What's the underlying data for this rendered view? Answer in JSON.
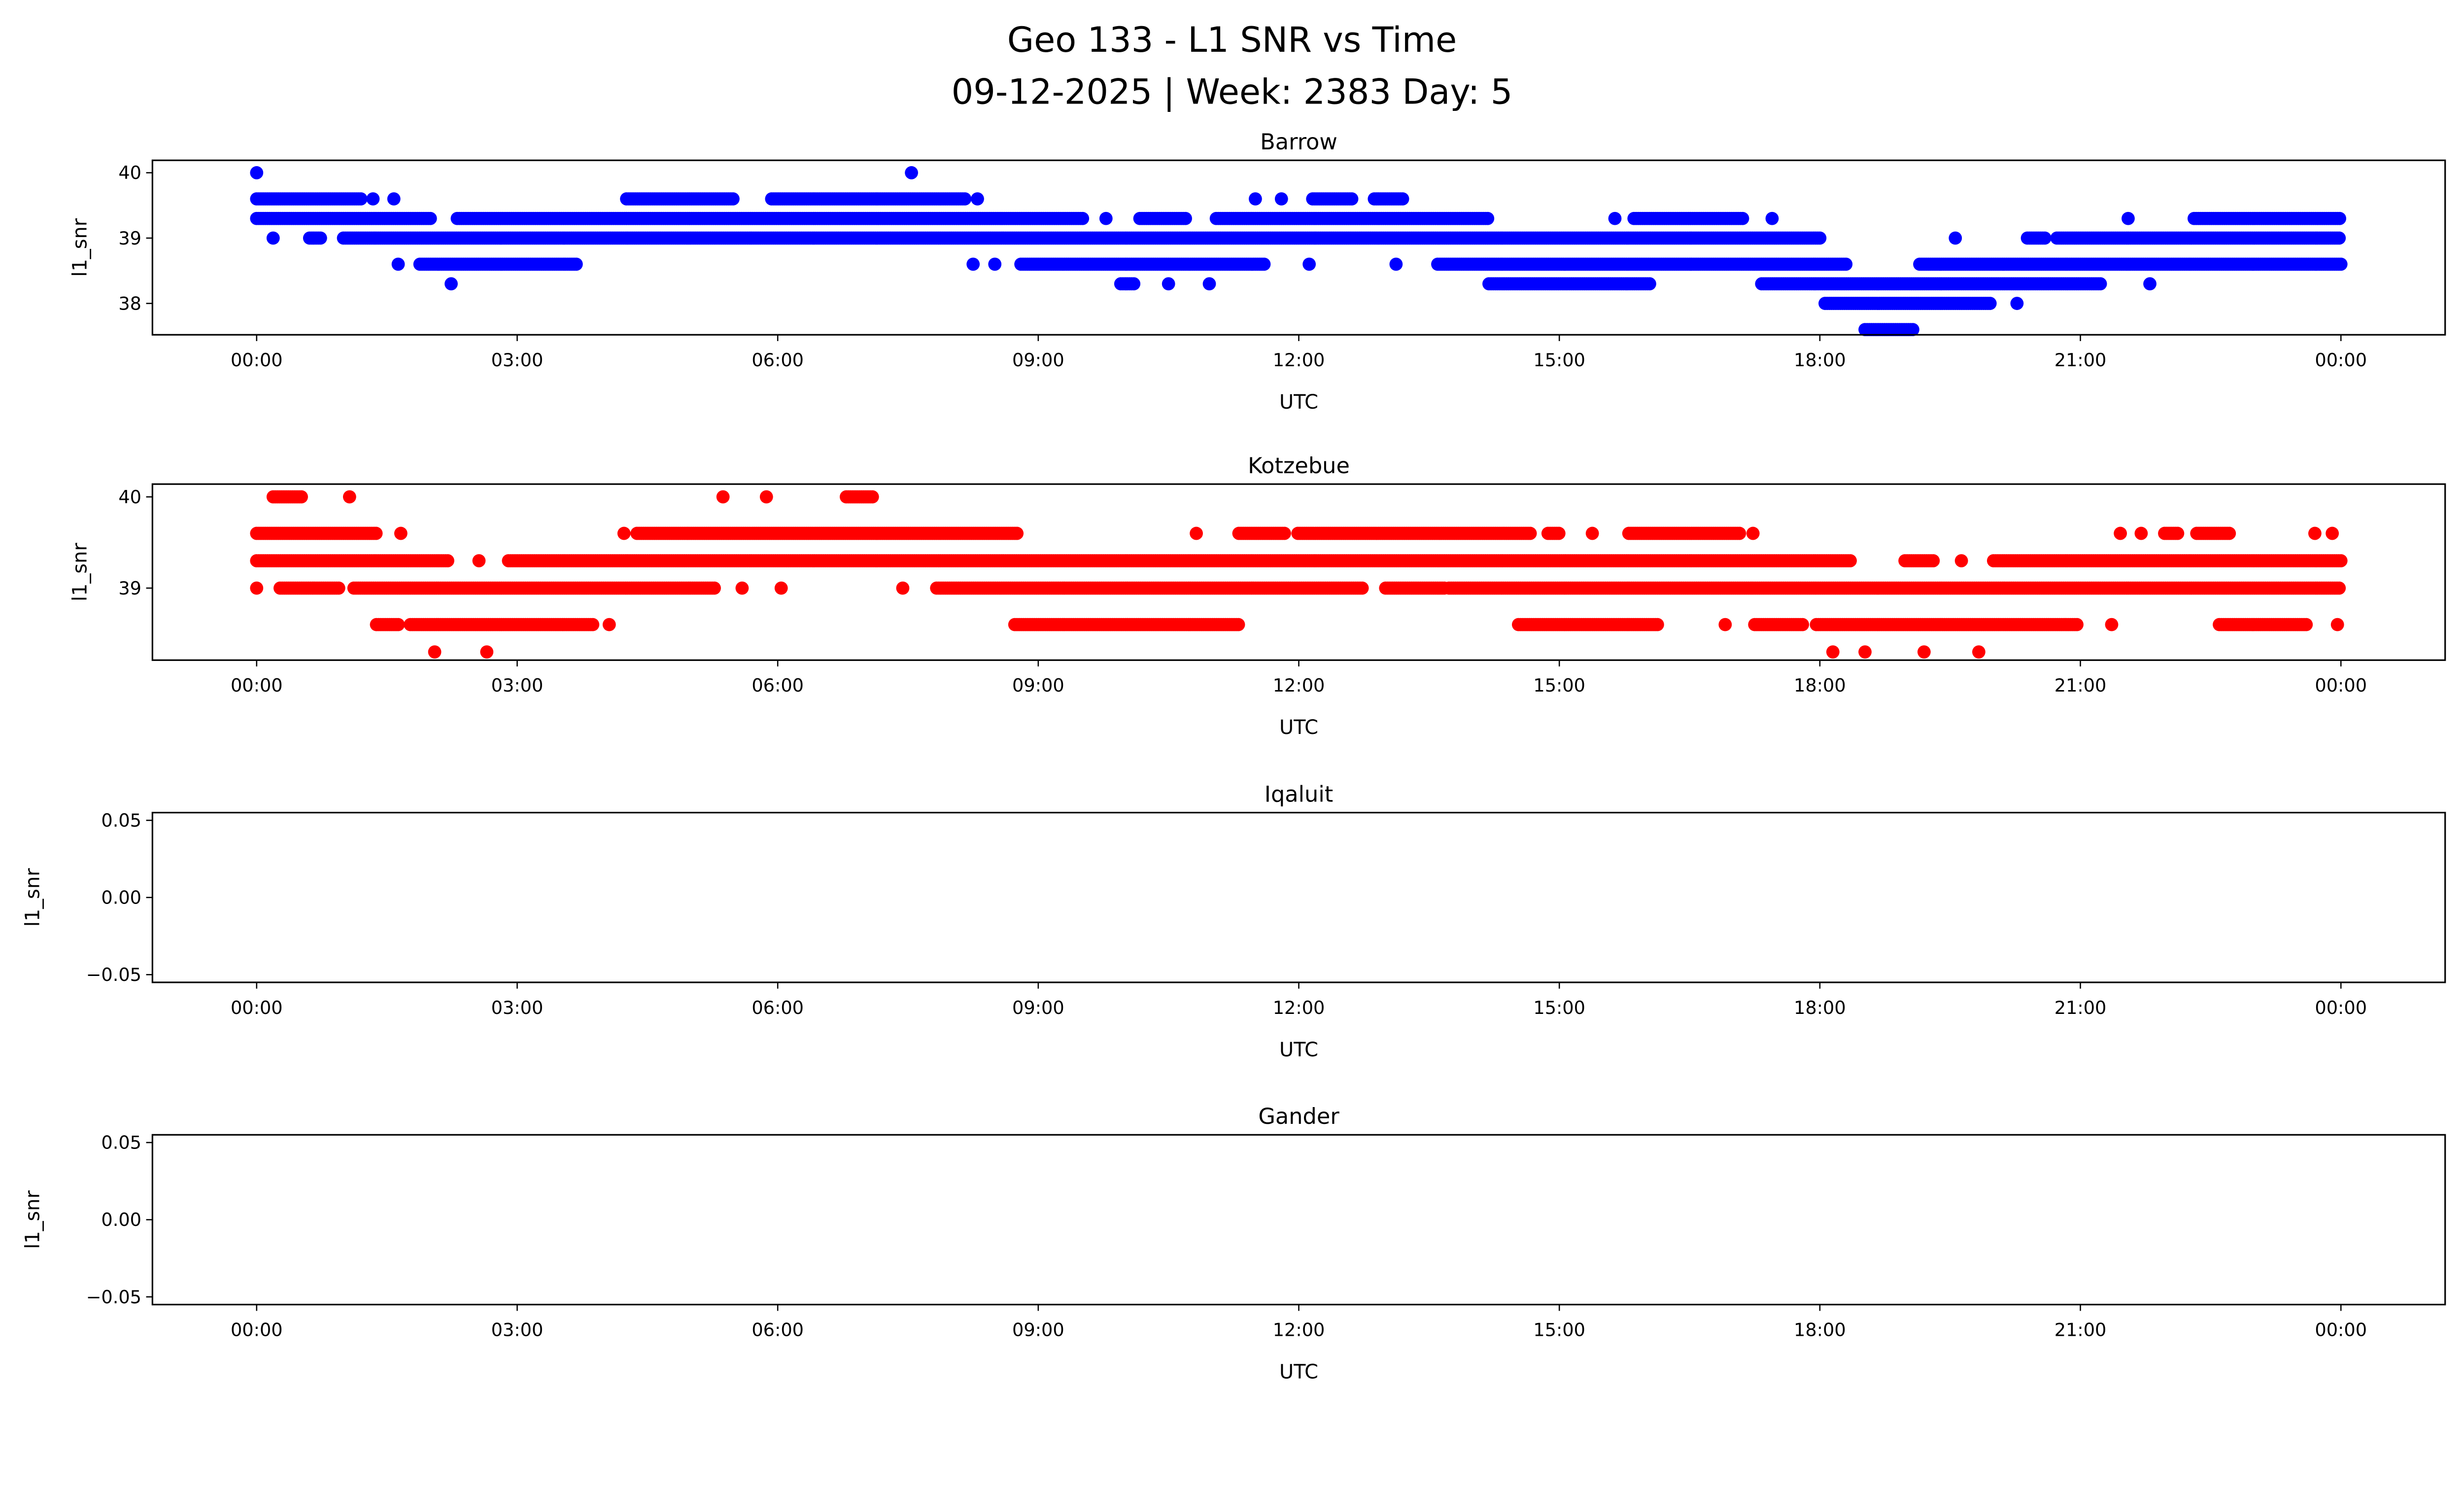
{
  "chart_data": {
    "type": "scatter",
    "title_line1": "Geo 133 - L1 SNR vs Time",
    "title_line2": "09-12-2025 | Week: 2383 Day: 5",
    "x_tick_labels": [
      "00:00",
      "03:00",
      "06:00",
      "09:00",
      "12:00",
      "15:00",
      "18:00",
      "21:00",
      "00:00"
    ],
    "x_ticks_hours": [
      0,
      3,
      6,
      9,
      12,
      15,
      18,
      21,
      24
    ],
    "xlim_hours": [
      -1.2,
      25.2
    ],
    "panels": [
      {
        "title": "Barrow",
        "xlabel": "UTC",
        "ylabel": "l1_snr",
        "color": "#0000ff",
        "ylim": [
          37.52,
          40.19
        ],
        "yticks": [
          38,
          39,
          40
        ],
        "ytick_labels": [
          "38",
          "39",
          "40"
        ],
        "levels": [
          {
            "snr": 40.0,
            "ranges": [
              [
                0.0,
                0.0
              ],
              [
                7.54,
                7.54
              ]
            ]
          },
          {
            "snr": 39.6,
            "ranges": [
              [
                0,
                1.2
              ],
              [
                1.34,
                1.34
              ],
              [
                1.58,
                1.58
              ],
              [
                4.26,
                5.5
              ],
              [
                5.93,
                8.17
              ],
              [
                8.3,
                8.3
              ],
              [
                11.5,
                11.5
              ],
              [
                11.8,
                11.8
              ],
              [
                12.16,
                12.63
              ],
              [
                12.87,
                13.2
              ]
            ]
          },
          {
            "snr": 39.3,
            "ranges": [
              [
                0,
                2.02
              ],
              [
                2.31,
                9.52
              ],
              [
                9.78,
                9.78
              ],
              [
                10.17,
                10.71
              ],
              [
                11.05,
                14.19
              ],
              [
                15.64,
                15.64
              ],
              [
                15.86,
                17.13
              ],
              [
                17.45,
                17.45
              ],
              [
                21.55,
                21.55
              ],
              [
                22.31,
                24
              ]
            ]
          },
          {
            "snr": 39.0,
            "ranges": [
              [
                0.19,
                0.19
              ],
              [
                0.61,
                0.75
              ],
              [
                1.0,
                18.01
              ],
              [
                19.56,
                19.56
              ],
              [
                20.39,
                20.61
              ],
              [
                20.73,
                24
              ]
            ]
          },
          {
            "snr": 38.6,
            "ranges": [
              [
                1.63,
                1.63
              ],
              [
                1.88,
                3.7
              ],
              [
                8.25,
                8.25
              ],
              [
                8.5,
                8.5
              ],
              [
                8.8,
                11.6
              ],
              [
                12.12,
                12.12
              ],
              [
                13.12,
                13.12
              ],
              [
                13.6,
                18.3
              ],
              [
                19.15,
                24
              ]
            ]
          },
          {
            "snr": 38.3,
            "ranges": [
              [
                2.24,
                2.24
              ],
              [
                9.95,
                10.12
              ],
              [
                10.5,
                10.5
              ],
              [
                10.97,
                10.97
              ],
              [
                14.19,
                16.06
              ],
              [
                17.33,
                21.24
              ],
              [
                21.8,
                21.8
              ]
            ]
          },
          {
            "snr": 38.0,
            "ranges": [
              [
                18.06,
                19.97
              ],
              [
                20.27,
                20.27
              ]
            ]
          },
          {
            "snr": 37.6,
            "ranges": [
              [
                18.52,
                19.08
              ]
            ]
          }
        ]
      },
      {
        "title": "Kotzebue",
        "xlabel": "UTC",
        "ylabel": "l1_snr",
        "color": "#ff0000",
        "ylim": [
          38.21,
          40.14
        ],
        "yticks": [
          39,
          40
        ],
        "ytick_labels": [
          "39",
          "40"
        ],
        "levels": [
          {
            "snr": 40.0,
            "ranges": [
              [
                0.19,
                0.53
              ],
              [
                1.07,
                1.07
              ],
              [
                5.37,
                5.37
              ],
              [
                5.87,
                5.87
              ],
              [
                6.79,
                7.1
              ]
            ]
          },
          {
            "snr": 39.6,
            "ranges": [
              [
                0,
                1.38
              ],
              [
                1.66,
                1.66
              ],
              [
                4.23,
                4.23
              ],
              [
                4.38,
                8.76
              ],
              [
                10.82,
                10.82
              ],
              [
                11.31,
                11.85
              ],
              [
                11.99,
                14.67
              ],
              [
                14.87,
                15.0
              ],
              [
                15.38,
                15.38
              ],
              [
                15.8,
                17.08
              ],
              [
                17.23,
                17.23
              ],
              [
                21.46,
                21.46
              ],
              [
                21.7,
                21.7
              ],
              [
                21.97,
                22.14
              ],
              [
                22.34,
                22.73
              ],
              [
                23.7,
                23.7
              ],
              [
                23.9,
                23.9
              ]
            ]
          },
          {
            "snr": 39.3,
            "ranges": [
              [
                0,
                2.22
              ],
              [
                2.56,
                2.56
              ],
              [
                2.9,
                18.35
              ],
              [
                18.98,
                19.32
              ],
              [
                19.63,
                19.63
              ],
              [
                20.0,
                24
              ]
            ]
          },
          {
            "snr": 39.0,
            "ranges": [
              [
                0,
                0
              ],
              [
                0.27,
                0.95
              ],
              [
                1.12,
                5.28
              ],
              [
                5.59,
                5.59
              ],
              [
                6.04,
                6.04
              ],
              [
                7.44,
                7.44
              ],
              [
                7.83,
                12.75
              ],
              [
                13.0,
                13.68
              ],
              [
                13.73,
                24
              ]
            ]
          },
          {
            "snr": 38.6,
            "ranges": [
              [
                1.38,
                1.63
              ],
              [
                1.77,
                3.89
              ],
              [
                4.06,
                4.06
              ],
              [
                8.73,
                11.31
              ],
              [
                14.53,
                16.15
              ],
              [
                16.91,
                16.91
              ],
              [
                17.25,
                17.81
              ],
              [
                17.96,
                20.98
              ],
              [
                21.36,
                21.36
              ],
              [
                22.6,
                23.62
              ],
              [
                23.96,
                23.96
              ]
            ]
          },
          {
            "snr": 38.3,
            "ranges": [
              [
                2.05,
                2.05
              ],
              [
                2.65,
                2.65
              ],
              [
                18.15,
                18.15
              ],
              [
                18.52,
                18.52
              ],
              [
                19.2,
                19.2
              ],
              [
                19.83,
                19.83
              ]
            ]
          }
        ]
      },
      {
        "title": "Iqaluit",
        "xlabel": "UTC",
        "ylabel": "l1_snr",
        "color": "#0000ff",
        "ylim": [
          -0.055,
          0.055
        ],
        "yticks": [
          -0.05,
          0,
          0.05
        ],
        "ytick_labels": [
          "−0.05",
          "0.00",
          "0.05"
        ],
        "levels": []
      },
      {
        "title": "Gander",
        "xlabel": "UTC",
        "ylabel": "l1_snr",
        "color": "#0000ff",
        "ylim": [
          -0.055,
          0.055
        ],
        "yticks": [
          -0.05,
          0,
          0.05
        ],
        "ytick_labels": [
          "−0.05",
          "0.00",
          "0.05"
        ],
        "levels": []
      }
    ]
  }
}
